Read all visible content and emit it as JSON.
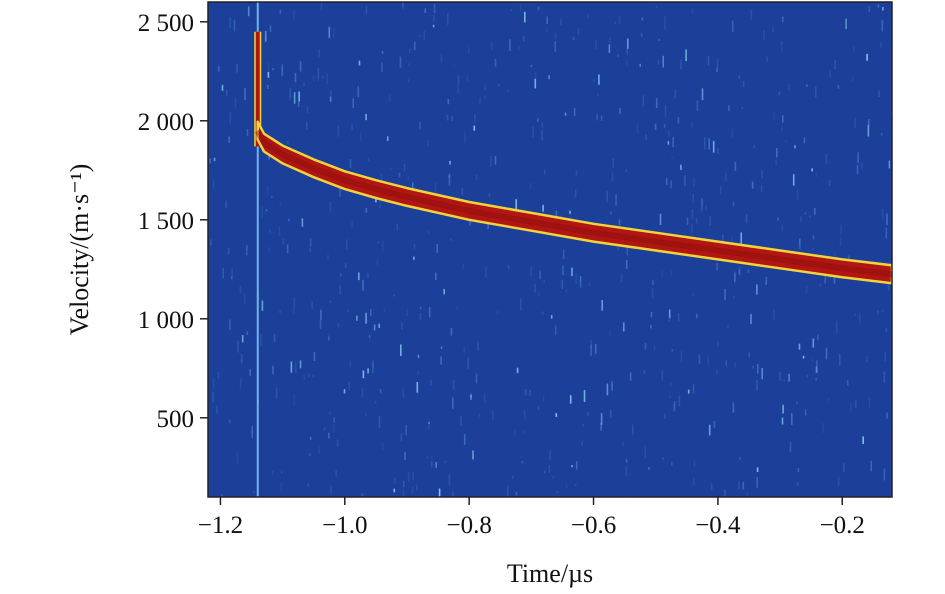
{
  "chart_data": {
    "type": "heatmap",
    "title": "",
    "xlabel": "Time/µs",
    "ylabel": "Velocity/(m·s⁻¹)",
    "xlim": [
      -1.22,
      -0.12
    ],
    "ylim": [
      100,
      2600
    ],
    "x_ticks": [
      -1.2,
      -1.0,
      -0.8,
      -0.6,
      -0.4,
      -0.2
    ],
    "x_tick_labels": [
      "−1.2",
      "−1.0",
      "−0.8",
      "−0.6",
      "−0.4",
      "−0.2"
    ],
    "y_ticks": [
      500,
      1000,
      1500,
      2000,
      2500
    ],
    "y_tick_labels": [
      "500",
      "1 000",
      "1 500",
      "2 000",
      "2 500"
    ],
    "colormap": "jet",
    "colors": {
      "background": "#1c3f9a",
      "signal_core": "#b01612",
      "signal_edge": "#f2d43a",
      "noise_speck": "#7fc8ee"
    },
    "velocity_trace": {
      "x": [
        -1.14,
        -1.13,
        -1.1,
        -1.05,
        -1.0,
        -0.95,
        -0.9,
        -0.8,
        -0.7,
        -0.6,
        -0.5,
        -0.4,
        -0.3,
        -0.2,
        -0.12
      ],
      "y": [
        1950,
        1890,
        1830,
        1760,
        1700,
        1655,
        1615,
        1545,
        1490,
        1435,
        1390,
        1345,
        1300,
        1255,
        1225
      ],
      "band_half_width": 45
    },
    "jump": {
      "x": -1.14,
      "y_from": 2450,
      "y_to": 1870
    },
    "vertical_line": {
      "x": -1.14,
      "y_from": 100,
      "y_to": 2600
    }
  }
}
